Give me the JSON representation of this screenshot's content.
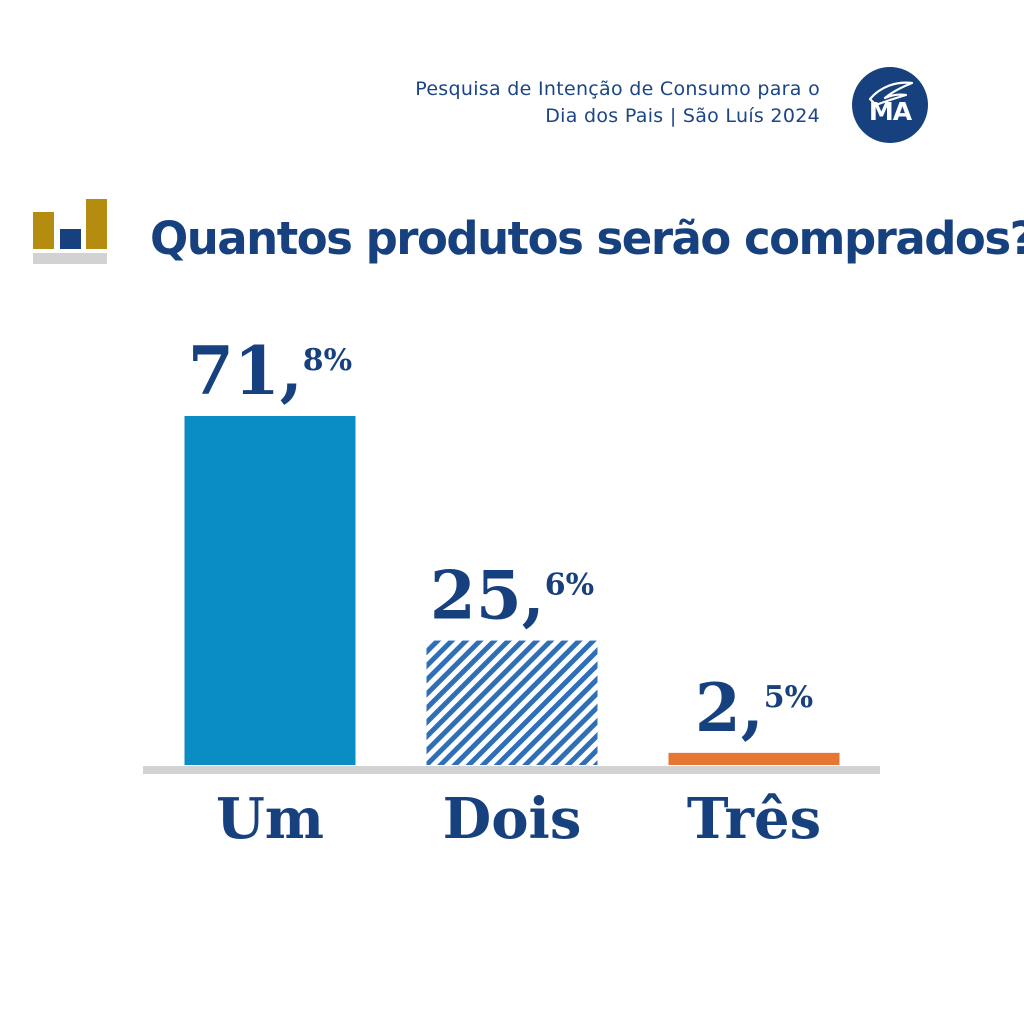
{
  "header": {
    "line1": "Pesquisa de Intenção de Consumo para o",
    "line2": "Dia dos Pais | São Luís 2024",
    "logo_text": "MA"
  },
  "colors": {
    "navy": "#17407f",
    "bar_um": "#0a8dc2",
    "bar_dois": "#2f6fb8",
    "bar_tres": "#e67634",
    "gold": "#b48c10",
    "baseline": "#d2d2d2"
  },
  "icons": {
    "title_icon": "bar-chart-icon",
    "logo_icon": "quill-icon"
  },
  "chart_data": {
    "type": "bar",
    "title": "Quantos produtos serão comprados?",
    "categories": [
      "Um",
      "Dois",
      "Três"
    ],
    "values": [
      71.8,
      25.6,
      2.5
    ],
    "value_labels": [
      {
        "int": "71,",
        "dec": "8%"
      },
      {
        "int": "25,",
        "dec": "6%"
      },
      {
        "int": "2,",
        "dec": "5%"
      }
    ],
    "unit": "%",
    "ylim": [
      0,
      71.8
    ],
    "grid": false,
    "legend": "none"
  }
}
